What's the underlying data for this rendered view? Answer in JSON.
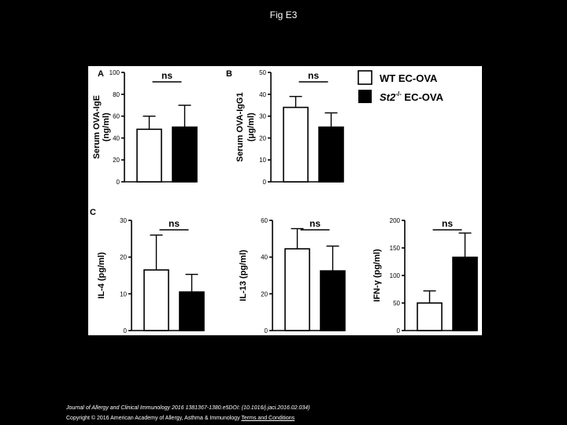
{
  "slide": {
    "title": "Fig E3"
  },
  "footer": {
    "citation": "Journal of Allergy and Clinical Immunology 2016 1381367-1380.e5DOI: (10.1016/j.jaci.2016.02.034)",
    "copyright": "Copyright © 2016 American Academy of Allergy, Asthma & Immunology",
    "terms_link": "Terms and Conditions"
  },
  "legend": {
    "wt_label": "WT EC-OVA",
    "ko_label_gene": "St2",
    "ko_label_sup": "-/-",
    "ko_label_rest": " EC-OVA"
  },
  "colors": {
    "wt": "#ffffff",
    "ko": "#000000",
    "axis": "#000000",
    "background": "#000000"
  },
  "chart_data": [
    {
      "type": "bar",
      "panel_label": "A",
      "ylabel": [
        "Serum OVA-IgE",
        "(ng/ml)"
      ],
      "ylim": [
        0,
        100
      ],
      "yticks": [
        0,
        20,
        40,
        60,
        80,
        100
      ],
      "categories": [
        "WT EC-OVA",
        "St2-/- EC-OVA"
      ],
      "values": [
        48,
        50
      ],
      "error": [
        12,
        20
      ],
      "significance": "ns"
    },
    {
      "type": "bar",
      "panel_label": "B",
      "ylabel": [
        "Serum OVA-IgG1",
        "(μg/ml)"
      ],
      "ylim": [
        0,
        50
      ],
      "yticks": [
        0,
        10,
        20,
        30,
        40,
        50
      ],
      "categories": [
        "WT EC-OVA",
        "St2-/- EC-OVA"
      ],
      "values": [
        34,
        25
      ],
      "error": [
        5,
        6.5
      ],
      "significance": "ns"
    },
    {
      "type": "bar",
      "panel_label": "C",
      "ylabel": [
        "IL-4 (pg/ml)"
      ],
      "ylim": [
        0,
        30
      ],
      "yticks": [
        0,
        10,
        20,
        30
      ],
      "categories": [
        "WT EC-OVA",
        "St2-/- EC-OVA"
      ],
      "values": [
        16.5,
        10.5
      ],
      "error": [
        9.5,
        4.8
      ],
      "significance": "ns"
    },
    {
      "type": "bar",
      "panel_label": "",
      "ylabel": [
        "IL-13 (pg/ml)"
      ],
      "ylim": [
        0,
        60
      ],
      "yticks": [
        0,
        20,
        40,
        60
      ],
      "categories": [
        "WT EC-OVA",
        "St2-/- EC-OVA"
      ],
      "values": [
        44.5,
        32.5
      ],
      "error": [
        11,
        13.5
      ],
      "significance": "ns"
    },
    {
      "type": "bar",
      "panel_label": "",
      "ylabel": [
        "IFN-γ (pg/ml)"
      ],
      "ylim": [
        0,
        200
      ],
      "yticks": [
        0,
        50,
        100,
        150,
        200
      ],
      "categories": [
        "WT EC-OVA",
        "St2-/- EC-OVA"
      ],
      "values": [
        50,
        133
      ],
      "error": [
        22,
        44
      ],
      "significance": "ns"
    }
  ]
}
